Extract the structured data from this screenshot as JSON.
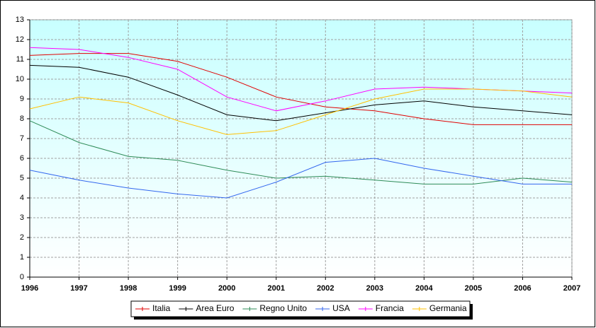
{
  "chart_data": {
    "type": "line",
    "x": [
      1996,
      1997,
      1998,
      1999,
      2000,
      2001,
      2002,
      2003,
      2004,
      2005,
      2006,
      2007
    ],
    "xlim": [
      1996,
      2007
    ],
    "xticks": [
      1996,
      1997,
      1998,
      1999,
      2000,
      2001,
      2002,
      2003,
      2004,
      2005,
      2006,
      2007
    ],
    "ylim": [
      0,
      13
    ],
    "yticks": [
      0,
      1,
      2,
      3,
      4,
      5,
      6,
      7,
      8,
      9,
      10,
      11,
      12,
      13
    ],
    "grid": true,
    "legend": "bottom",
    "series": [
      {
        "name": "Italia",
        "color": "#e00000",
        "values": [
          11.2,
          11.3,
          11.3,
          10.9,
          10.1,
          9.1,
          8.6,
          8.4,
          8.0,
          7.7,
          7.7,
          7.7
        ]
      },
      {
        "name": "Area Euro",
        "color": "#000000",
        "values": [
          10.7,
          10.6,
          10.1,
          9.2,
          8.2,
          7.9,
          8.3,
          8.7,
          8.9,
          8.6,
          8.4,
          8.2
        ]
      },
      {
        "name": "Regno Unito",
        "color": "#2e8b57",
        "values": [
          7.9,
          6.8,
          6.1,
          5.9,
          5.4,
          5.0,
          5.1,
          4.9,
          4.7,
          4.7,
          5.0,
          4.8
        ]
      },
      {
        "name": "USA",
        "color": "#3366ee",
        "values": [
          5.4,
          4.9,
          4.5,
          4.2,
          4.0,
          4.8,
          5.8,
          6.0,
          5.5,
          5.1,
          4.7,
          4.7
        ]
      },
      {
        "name": "Francia",
        "color": "#ff00ff",
        "values": [
          11.6,
          11.5,
          11.1,
          10.5,
          9.1,
          8.4,
          8.9,
          9.5,
          9.6,
          9.5,
          9.4,
          9.3
        ]
      },
      {
        "name": "Germania",
        "color": "#ffc000",
        "values": [
          8.5,
          9.1,
          8.8,
          7.9,
          7.2,
          7.4,
          8.2,
          9.0,
          9.5,
          9.5,
          9.4,
          9.1
        ]
      }
    ]
  }
}
